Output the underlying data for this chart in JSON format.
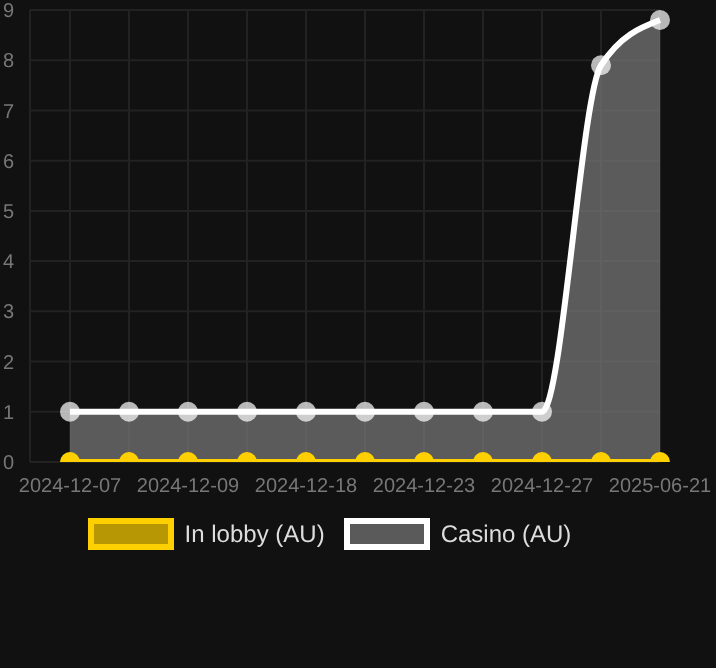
{
  "chart_data": {
    "type": "line",
    "categories": [
      "2024-12-07",
      null,
      "2024-12-09",
      null,
      "2024-12-18",
      null,
      "2024-12-23",
      null,
      "2024-12-27",
      null,
      "2025-06-21"
    ],
    "series": [
      {
        "name": "In lobby (AU)",
        "color": "#ffd000",
        "values": [
          0,
          0,
          0,
          0,
          0,
          0,
          0,
          0,
          0,
          0,
          0
        ]
      },
      {
        "name": "Casino (AU)",
        "type": "area",
        "color": "#ffffff",
        "values": [
          1,
          1,
          1,
          1,
          1,
          1,
          1,
          1,
          1,
          7.9,
          8.8
        ]
      }
    ],
    "ylim": [
      0,
      9
    ],
    "yticks": [
      0,
      1,
      2,
      3,
      4,
      5,
      6,
      7,
      8,
      9
    ],
    "grid": true,
    "legend": "bottom",
    "marker": "circle"
  }
}
